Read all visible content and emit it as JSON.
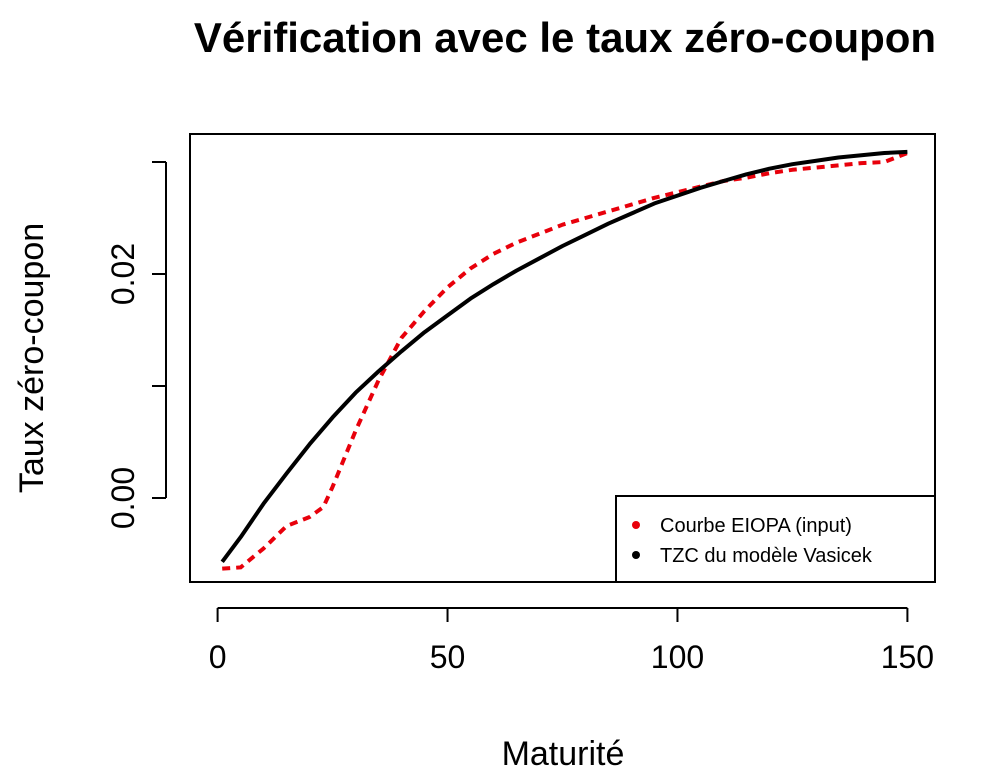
{
  "chart_data": {
    "type": "line",
    "title": "Vérification avec le taux zéro-coupon",
    "xlabel": "Maturité",
    "ylabel": "Taux zéro-coupon",
    "xlim": [
      -6,
      156
    ],
    "ylim": [
      -0.0075,
      0.0325
    ],
    "x_ticks": [
      0,
      50,
      100,
      150
    ],
    "x_tick_labels": [
      "0",
      "50",
      "100",
      "150"
    ],
    "y_ticks": [
      0.0,
      0.01,
      0.02,
      0.03
    ],
    "y_tick_labels": [
      "0.00",
      "",
      "0.02",
      ""
    ],
    "legend_position": "bottom-right",
    "grid": false,
    "series": [
      {
        "name": "Courbe EIOPA (input)",
        "color": "#e8000b",
        "style": "dashed",
        "x": [
          1,
          5,
          10,
          15,
          20,
          23,
          25,
          30,
          35,
          40,
          45,
          50,
          55,
          60,
          65,
          70,
          75,
          80,
          85,
          90,
          95,
          100,
          105,
          110,
          115,
          120,
          125,
          130,
          135,
          140,
          145,
          150
        ],
        "values": [
          -0.0063,
          -0.0062,
          -0.0045,
          -0.0025,
          -0.0017,
          -0.0008,
          0.001,
          0.006,
          0.0105,
          0.0143,
          0.0167,
          0.0188,
          0.0205,
          0.0218,
          0.0228,
          0.0236,
          0.0244,
          0.025,
          0.0256,
          0.0262,
          0.0268,
          0.0273,
          0.0278,
          0.0283,
          0.0286,
          0.029,
          0.0293,
          0.0295,
          0.0297,
          0.0299,
          0.03,
          0.0308
        ]
      },
      {
        "name": "TZC du modèle Vasicek",
        "color": "#000000",
        "style": "solid",
        "x": [
          1,
          5,
          10,
          15,
          20,
          25,
          30,
          35,
          40,
          45,
          50,
          55,
          60,
          65,
          70,
          75,
          80,
          85,
          90,
          95,
          100,
          105,
          110,
          115,
          120,
          125,
          130,
          135,
          140,
          145,
          150
        ],
        "values": [
          -0.0057,
          -0.0035,
          -0.0005,
          0.0022,
          0.0048,
          0.0072,
          0.0094,
          0.0113,
          0.0131,
          0.0148,
          0.0163,
          0.0178,
          0.0191,
          0.0203,
          0.0214,
          0.0225,
          0.0235,
          0.0245,
          0.0254,
          0.0263,
          0.027,
          0.0277,
          0.0283,
          0.0289,
          0.0294,
          0.0298,
          0.0301,
          0.0304,
          0.0306,
          0.0308,
          0.0309
        ]
      }
    ]
  }
}
